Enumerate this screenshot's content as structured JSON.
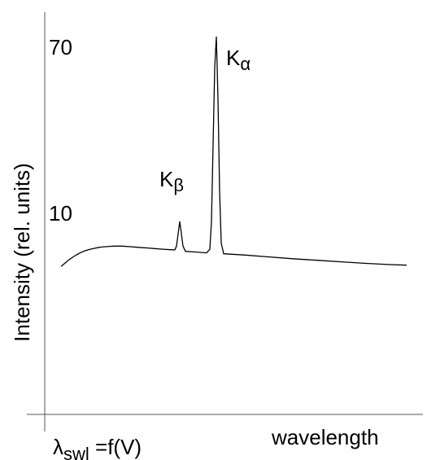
{
  "chart_data": {
    "type": "line",
    "title": "",
    "xlabel": "wavelength",
    "ylabel": "Intensity (rel. units)",
    "y_ticks": [
      {
        "label": "70",
        "value": 70
      },
      {
        "label": "10",
        "value": 10
      }
    ],
    "x_origin_label": "λ",
    "x_origin_label_sub": "swl",
    "x_origin_label_rest": " =f(V)",
    "peaks": [
      {
        "label": "K",
        "label_sub": "β",
        "x": 221,
        "y": 10
      },
      {
        "label": "K",
        "label_sub": "α",
        "x": 266,
        "y": 70
      }
    ],
    "grid": false,
    "series": [
      {
        "values": [
          [
            75,
            -4.6
          ],
          [
            80,
            -3.5
          ],
          [
            85,
            -2.4
          ],
          [
            90,
            -1.5
          ],
          [
            95,
            -0.7
          ],
          [
            100,
            0.0
          ],
          [
            105,
            0.5
          ],
          [
            110,
            0.9
          ],
          [
            115,
            1.2
          ],
          [
            120,
            1.5
          ],
          [
            125,
            1.7
          ],
          [
            130,
            1.8
          ],
          [
            135,
            1.9
          ],
          [
            140,
            2.0
          ],
          [
            145,
            2.0
          ],
          [
            150,
            2.0
          ],
          [
            160,
            1.8
          ],
          [
            170,
            1.6
          ],
          [
            180,
            1.4
          ],
          [
            190,
            1.2
          ],
          [
            200,
            1.0
          ],
          [
            212,
            0.8
          ],
          [
            215,
            0.8
          ],
          [
            217,
            2.0
          ],
          [
            219,
            6.0
          ],
          [
            221,
            10.0
          ],
          [
            223,
            6.0
          ],
          [
            225,
            2.0
          ],
          [
            228,
            0.3
          ],
          [
            240,
            0.1
          ],
          [
            254,
            -0.2
          ],
          [
            258,
            1.0
          ],
          [
            260,
            10.0
          ],
          [
            262,
            35.0
          ],
          [
            264,
            60.0
          ],
          [
            266,
            70.0
          ],
          [
            268,
            50.0
          ],
          [
            270,
            20.0
          ],
          [
            272,
            3.0
          ],
          [
            275,
            -0.5
          ],
          [
            300,
            -0.9
          ],
          [
            330,
            -1.5
          ],
          [
            360,
            -2.1
          ],
          [
            390,
            -2.6
          ],
          [
            420,
            -3.1
          ],
          [
            450,
            -3.6
          ],
          [
            480,
            -4.0
          ],
          [
            500,
            -4.2
          ]
        ]
      }
    ]
  }
}
